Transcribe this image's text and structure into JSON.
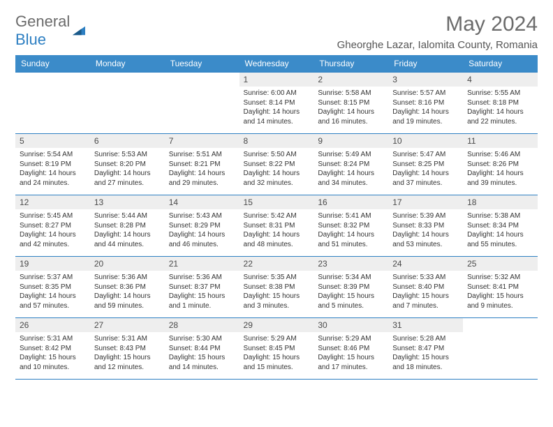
{
  "logo": {
    "word1": "General",
    "word2": "Blue"
  },
  "title": "May 2024",
  "location": "Gheorghe Lazar, Ialomita County, Romania",
  "colors": {
    "header_bg": "#3b8bc9",
    "header_text": "#ffffff",
    "border": "#2d7fc2",
    "daynum_bg": "#eeeeee",
    "text": "#333333",
    "logo_gray": "#6b6b6b",
    "logo_blue": "#2d7fc2"
  },
  "weekdays": [
    "Sunday",
    "Monday",
    "Tuesday",
    "Wednesday",
    "Thursday",
    "Friday",
    "Saturday"
  ],
  "weeks": [
    [
      {
        "n": "",
        "sr": "",
        "ss": "",
        "dl": ""
      },
      {
        "n": "",
        "sr": "",
        "ss": "",
        "dl": ""
      },
      {
        "n": "",
        "sr": "",
        "ss": "",
        "dl": ""
      },
      {
        "n": "1",
        "sr": "Sunrise: 6:00 AM",
        "ss": "Sunset: 8:14 PM",
        "dl": "Daylight: 14 hours and 14 minutes."
      },
      {
        "n": "2",
        "sr": "Sunrise: 5:58 AM",
        "ss": "Sunset: 8:15 PM",
        "dl": "Daylight: 14 hours and 16 minutes."
      },
      {
        "n": "3",
        "sr": "Sunrise: 5:57 AM",
        "ss": "Sunset: 8:16 PM",
        "dl": "Daylight: 14 hours and 19 minutes."
      },
      {
        "n": "4",
        "sr": "Sunrise: 5:55 AM",
        "ss": "Sunset: 8:18 PM",
        "dl": "Daylight: 14 hours and 22 minutes."
      }
    ],
    [
      {
        "n": "5",
        "sr": "Sunrise: 5:54 AM",
        "ss": "Sunset: 8:19 PM",
        "dl": "Daylight: 14 hours and 24 minutes."
      },
      {
        "n": "6",
        "sr": "Sunrise: 5:53 AM",
        "ss": "Sunset: 8:20 PM",
        "dl": "Daylight: 14 hours and 27 minutes."
      },
      {
        "n": "7",
        "sr": "Sunrise: 5:51 AM",
        "ss": "Sunset: 8:21 PM",
        "dl": "Daylight: 14 hours and 29 minutes."
      },
      {
        "n": "8",
        "sr": "Sunrise: 5:50 AM",
        "ss": "Sunset: 8:22 PM",
        "dl": "Daylight: 14 hours and 32 minutes."
      },
      {
        "n": "9",
        "sr": "Sunrise: 5:49 AM",
        "ss": "Sunset: 8:24 PM",
        "dl": "Daylight: 14 hours and 34 minutes."
      },
      {
        "n": "10",
        "sr": "Sunrise: 5:47 AM",
        "ss": "Sunset: 8:25 PM",
        "dl": "Daylight: 14 hours and 37 minutes."
      },
      {
        "n": "11",
        "sr": "Sunrise: 5:46 AM",
        "ss": "Sunset: 8:26 PM",
        "dl": "Daylight: 14 hours and 39 minutes."
      }
    ],
    [
      {
        "n": "12",
        "sr": "Sunrise: 5:45 AM",
        "ss": "Sunset: 8:27 PM",
        "dl": "Daylight: 14 hours and 42 minutes."
      },
      {
        "n": "13",
        "sr": "Sunrise: 5:44 AM",
        "ss": "Sunset: 8:28 PM",
        "dl": "Daylight: 14 hours and 44 minutes."
      },
      {
        "n": "14",
        "sr": "Sunrise: 5:43 AM",
        "ss": "Sunset: 8:29 PM",
        "dl": "Daylight: 14 hours and 46 minutes."
      },
      {
        "n": "15",
        "sr": "Sunrise: 5:42 AM",
        "ss": "Sunset: 8:31 PM",
        "dl": "Daylight: 14 hours and 48 minutes."
      },
      {
        "n": "16",
        "sr": "Sunrise: 5:41 AM",
        "ss": "Sunset: 8:32 PM",
        "dl": "Daylight: 14 hours and 51 minutes."
      },
      {
        "n": "17",
        "sr": "Sunrise: 5:39 AM",
        "ss": "Sunset: 8:33 PM",
        "dl": "Daylight: 14 hours and 53 minutes."
      },
      {
        "n": "18",
        "sr": "Sunrise: 5:38 AM",
        "ss": "Sunset: 8:34 PM",
        "dl": "Daylight: 14 hours and 55 minutes."
      }
    ],
    [
      {
        "n": "19",
        "sr": "Sunrise: 5:37 AM",
        "ss": "Sunset: 8:35 PM",
        "dl": "Daylight: 14 hours and 57 minutes."
      },
      {
        "n": "20",
        "sr": "Sunrise: 5:36 AM",
        "ss": "Sunset: 8:36 PM",
        "dl": "Daylight: 14 hours and 59 minutes."
      },
      {
        "n": "21",
        "sr": "Sunrise: 5:36 AM",
        "ss": "Sunset: 8:37 PM",
        "dl": "Daylight: 15 hours and 1 minute."
      },
      {
        "n": "22",
        "sr": "Sunrise: 5:35 AM",
        "ss": "Sunset: 8:38 PM",
        "dl": "Daylight: 15 hours and 3 minutes."
      },
      {
        "n": "23",
        "sr": "Sunrise: 5:34 AM",
        "ss": "Sunset: 8:39 PM",
        "dl": "Daylight: 15 hours and 5 minutes."
      },
      {
        "n": "24",
        "sr": "Sunrise: 5:33 AM",
        "ss": "Sunset: 8:40 PM",
        "dl": "Daylight: 15 hours and 7 minutes."
      },
      {
        "n": "25",
        "sr": "Sunrise: 5:32 AM",
        "ss": "Sunset: 8:41 PM",
        "dl": "Daylight: 15 hours and 9 minutes."
      }
    ],
    [
      {
        "n": "26",
        "sr": "Sunrise: 5:31 AM",
        "ss": "Sunset: 8:42 PM",
        "dl": "Daylight: 15 hours and 10 minutes."
      },
      {
        "n": "27",
        "sr": "Sunrise: 5:31 AM",
        "ss": "Sunset: 8:43 PM",
        "dl": "Daylight: 15 hours and 12 minutes."
      },
      {
        "n": "28",
        "sr": "Sunrise: 5:30 AM",
        "ss": "Sunset: 8:44 PM",
        "dl": "Daylight: 15 hours and 14 minutes."
      },
      {
        "n": "29",
        "sr": "Sunrise: 5:29 AM",
        "ss": "Sunset: 8:45 PM",
        "dl": "Daylight: 15 hours and 15 minutes."
      },
      {
        "n": "30",
        "sr": "Sunrise: 5:29 AM",
        "ss": "Sunset: 8:46 PM",
        "dl": "Daylight: 15 hours and 17 minutes."
      },
      {
        "n": "31",
        "sr": "Sunrise: 5:28 AM",
        "ss": "Sunset: 8:47 PM",
        "dl": "Daylight: 15 hours and 18 minutes."
      },
      {
        "n": "",
        "sr": "",
        "ss": "",
        "dl": ""
      }
    ]
  ]
}
